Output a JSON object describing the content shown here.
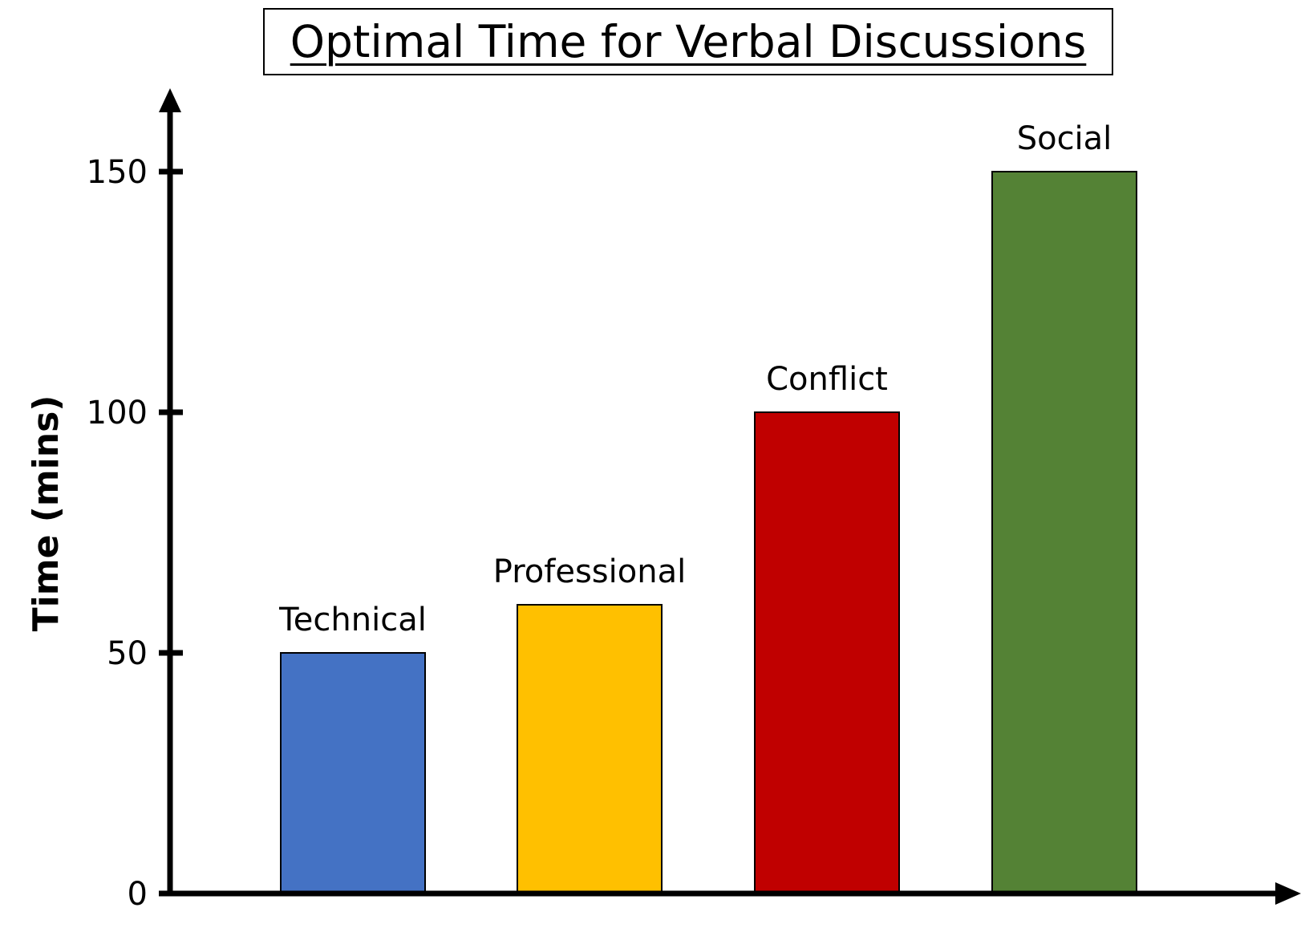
{
  "chart_data": {
    "type": "bar",
    "title": "Optimal Time for Verbal Discussions",
    "xlabel": "",
    "ylabel": "Time (mins)",
    "categories": [
      "Technical",
      "Professional",
      "Conflict",
      "Social"
    ],
    "values": [
      50,
      60,
      100,
      150
    ],
    "colors": [
      "#4472c4",
      "#ffc000",
      "#c00000",
      "#548235"
    ],
    "yticks": [
      0,
      50,
      100,
      150
    ],
    "ylim": [
      0,
      165
    ],
    "grid": false,
    "legend": "none",
    "data_labels_position": "above-bar"
  }
}
